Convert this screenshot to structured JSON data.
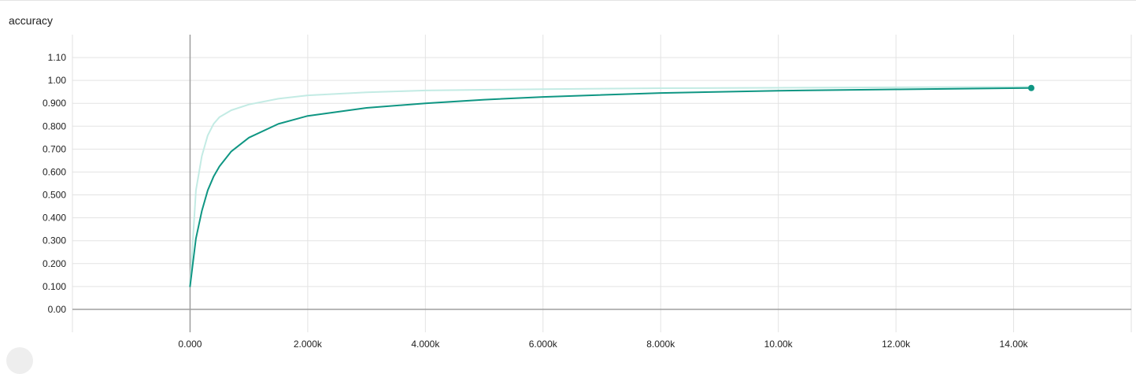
{
  "chart_data": {
    "type": "line",
    "title": "accuracy",
    "xlabel": "",
    "ylabel": "",
    "xlim": [
      -2000,
      16000
    ],
    "ylim": [
      -0.1,
      1.2
    ],
    "grid": true,
    "x_ticks": [
      {
        "value": 0,
        "label": "0.000"
      },
      {
        "value": 2000,
        "label": "2.000k"
      },
      {
        "value": 4000,
        "label": "4.000k"
      },
      {
        "value": 6000,
        "label": "6.000k"
      },
      {
        "value": 8000,
        "label": "8.000k"
      },
      {
        "value": 10000,
        "label": "10.00k"
      },
      {
        "value": 12000,
        "label": "12.00k"
      },
      {
        "value": 14000,
        "label": "14.00k"
      }
    ],
    "y_ticks": [
      {
        "value": 0.0,
        "label": "0.00"
      },
      {
        "value": 0.1,
        "label": "0.100"
      },
      {
        "value": 0.2,
        "label": "0.200"
      },
      {
        "value": 0.3,
        "label": "0.300"
      },
      {
        "value": 0.4,
        "label": "0.400"
      },
      {
        "value": 0.5,
        "label": "0.500"
      },
      {
        "value": 0.6,
        "label": "0.600"
      },
      {
        "value": 0.7,
        "label": "0.700"
      },
      {
        "value": 0.8,
        "label": "0.800"
      },
      {
        "value": 0.9,
        "label": "0.900"
      },
      {
        "value": 1.0,
        "label": "1.00"
      },
      {
        "value": 1.1,
        "label": "1.10"
      }
    ],
    "series": [
      {
        "role": "raw",
        "color": "#c3ebe4",
        "x": [
          0,
          100,
          200,
          300,
          400,
          500,
          700,
          1000,
          1500,
          2000,
          3000,
          4000,
          6000,
          8000,
          10000,
          12000,
          14300
        ],
        "y": [
          0.1,
          0.52,
          0.67,
          0.76,
          0.81,
          0.84,
          0.87,
          0.895,
          0.92,
          0.935,
          0.948,
          0.956,
          0.962,
          0.966,
          0.968,
          0.97,
          0.972
        ]
      },
      {
        "role": "smoothed",
        "color": "#0f9683",
        "x": [
          0,
          100,
          200,
          300,
          400,
          500,
          700,
          1000,
          1500,
          2000,
          3000,
          4000,
          5000,
          6000,
          8000,
          10000,
          12000,
          14300
        ],
        "y": [
          0.1,
          0.31,
          0.43,
          0.52,
          0.58,
          0.625,
          0.69,
          0.75,
          0.81,
          0.845,
          0.88,
          0.9,
          0.916,
          0.928,
          0.945,
          0.955,
          0.961,
          0.967
        ]
      }
    ],
    "markers": [
      {
        "series": "smoothed",
        "x": 14300,
        "y": 0.967,
        "color": "#0f9683"
      }
    ]
  }
}
